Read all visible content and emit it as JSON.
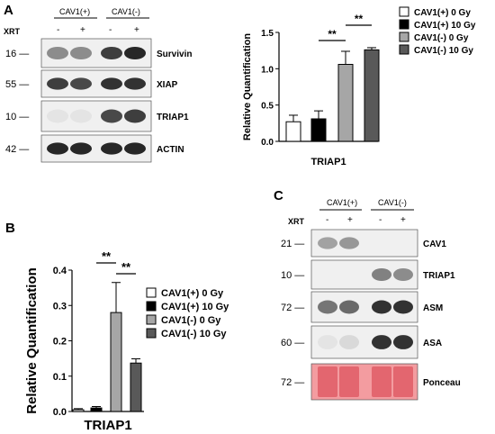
{
  "panels": {
    "A": "A",
    "B": "B",
    "C": "C"
  },
  "blot_a": {
    "group_labels": [
      "CAV1(+)",
      "CAV1(-)"
    ],
    "xrt_label": "XRT",
    "xrt_marks": [
      "-",
      "+",
      "-",
      "+"
    ],
    "rows": [
      {
        "mw": "16",
        "label": "Survivin",
        "bands": [
          0.45,
          0.45,
          0.8,
          0.9
        ]
      },
      {
        "mw": "55",
        "label": "XIAP",
        "bands": [
          0.8,
          0.75,
          0.85,
          0.85
        ]
      },
      {
        "mw": "10",
        "label": "TRIAP1",
        "bands": [
          0.05,
          0.05,
          0.75,
          0.8
        ]
      },
      {
        "mw": "42",
        "label": "ACTIN",
        "bands": [
          0.9,
          0.9,
          0.9,
          0.9
        ]
      }
    ]
  },
  "blot_c": {
    "group_labels": [
      "CAV1(+)",
      "CAV1(-)"
    ],
    "xrt_label": "XRT",
    "xrt_marks": [
      "-",
      "+",
      "-",
      "+"
    ],
    "rows": [
      {
        "mw": "21",
        "label": "CAV1",
        "bands": [
          0.35,
          0.4,
          0.0,
          0.0
        ]
      },
      {
        "mw": "10",
        "label": "TRIAP1",
        "bands": [
          0.0,
          0.0,
          0.5,
          0.45
        ]
      },
      {
        "mw": "72",
        "label": "ASM",
        "bands": [
          0.55,
          0.6,
          0.85,
          0.85
        ]
      },
      {
        "mw": "60",
        "label": "ASA",
        "bands": [
          0.05,
          0.1,
          0.85,
          0.85
        ]
      },
      {
        "mw": "72",
        "label": "Ponceau",
        "bands": [
          0.6,
          0.6,
          0.6,
          0.6
        ]
      }
    ]
  },
  "chart_data": [
    {
      "panel": "A",
      "type": "bar",
      "categories": [
        "TRIAP1"
      ],
      "xlabel": "TRIAP1",
      "ylabel": "Relative Quantification",
      "ylim": [
        0.0,
        1.5
      ],
      "yticks": [
        "0.0",
        "0.5",
        "1.0",
        "1.5"
      ],
      "series": [
        {
          "name": "CAV1(+) 0 Gy",
          "values": [
            0.27
          ],
          "error": [
            0.09
          ],
          "color": "#ffffff"
        },
        {
          "name": "CAV1(+) 10 Gy",
          "values": [
            0.31
          ],
          "error": [
            0.11
          ],
          "color": "#000000"
        },
        {
          "name": "CAV1(-) 0 Gy",
          "values": [
            1.06
          ],
          "error": [
            0.18
          ],
          "color": "#a6a6a6"
        },
        {
          "name": "CAV1(-) 10 Gy",
          "values": [
            1.26
          ],
          "error": [
            0.03
          ],
          "color": "#595959"
        }
      ],
      "significance": [
        "**",
        "**"
      ],
      "legend_position": "right"
    },
    {
      "panel": "B",
      "type": "bar",
      "categories": [
        "TRIAP1"
      ],
      "xlabel": "TRIAP1",
      "ylabel": "Relative Quantification",
      "ylim": [
        0.0,
        0.4
      ],
      "yticks": [
        "0.0",
        "0.1",
        "0.2",
        "0.3",
        "0.4"
      ],
      "series": [
        {
          "name": "CAV1(+) 0 Gy",
          "values": [
            0.005
          ],
          "error": [
            0.003
          ],
          "color": "#ffffff"
        },
        {
          "name": "CAV1(+) 10 Gy",
          "values": [
            0.01
          ],
          "error": [
            0.004
          ],
          "color": "#000000"
        },
        {
          "name": "CAV1(-) 0 Gy",
          "values": [
            0.28
          ],
          "error": [
            0.085
          ],
          "color": "#a6a6a6"
        },
        {
          "name": "CAV1(-) 10 Gy",
          "values": [
            0.137
          ],
          "error": [
            0.012
          ],
          "color": "#595959"
        }
      ],
      "significance": [
        "**",
        "**"
      ],
      "legend_position": "right"
    }
  ]
}
